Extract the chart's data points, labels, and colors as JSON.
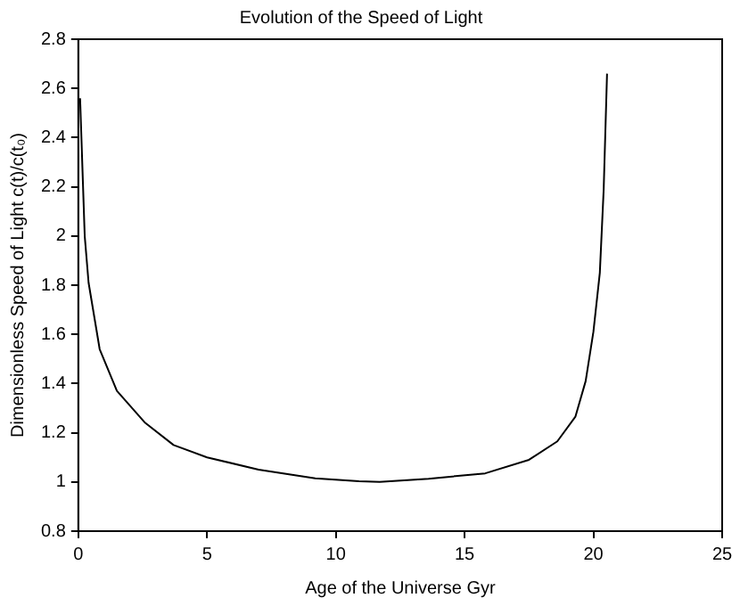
{
  "chart_data": {
    "type": "line",
    "title": "Evolution of the Speed of Light",
    "xlabel": "Age of the Universe Gyr",
    "ylabel": "Dimensionless Speed of Light c(t)/c(t₀)",
    "series": [
      {
        "color": "#000000",
        "x": [
          0.07,
          0.25,
          0.4,
          0.83,
          1.5,
          2.6,
          3.7,
          5.0,
          7.0,
          9.2,
          10.9,
          11.7,
          13.6,
          15.8,
          17.5,
          18.6,
          19.3,
          19.7,
          20.0,
          20.25,
          20.4,
          20.53
        ],
        "values": [
          2.56,
          2.0,
          1.81,
          1.54,
          1.37,
          1.24,
          1.15,
          1.1,
          1.05,
          1.015,
          1.003,
          1.0,
          1.013,
          1.035,
          1.09,
          1.165,
          1.265,
          1.41,
          1.61,
          1.85,
          2.19,
          2.66
        ]
      }
    ],
    "xlim": [
      0,
      25
    ],
    "xticks": [
      0,
      5,
      10,
      15,
      20,
      25
    ],
    "ylim": [
      0.8,
      2.8
    ],
    "yticks": [
      0.8,
      1,
      1.2,
      1.4,
      1.6,
      1.8,
      2,
      2.2,
      2.4,
      2.6,
      2.8
    ],
    "grid": false,
    "legend": false,
    "marker": "none",
    "line_style": "solid"
  }
}
